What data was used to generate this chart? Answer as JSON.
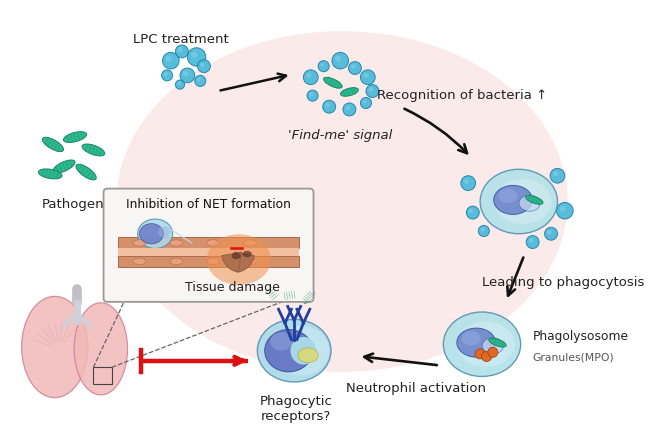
{
  "background_color": "#ffffff",
  "pink_glow_color": "#f5c8c8",
  "labels": {
    "lpc_treatment": "LPC treatment",
    "find_me_signal": "'Find-me' signal",
    "pathogen": "Pathogen",
    "recognition": "Recognition of bacteria ↑",
    "leading_phago": "Leading to phagocytosis",
    "phagolysosome": "Phagolysosome",
    "granules": "Granules(MPO)",
    "neutrophil": "Neutrophil activation",
    "phagocytic": "Phagocytic\nreceptors?",
    "inhibition_net": "Inhibition of NET formation",
    "tissue_damage": "Tissue damage"
  },
  "bacteria_color": "#2db890",
  "bacteria_edge": "#1a8865",
  "cell_outer_color": "#b0e0e8",
  "cell_inner_color": "#7088cc",
  "granule_color": "#e06820",
  "arrow_color": "#111111",
  "red_color": "#dd1111",
  "vesicle_color": "#48b8d8",
  "vesicle_edge": "#2080a8",
  "vesicle_light": "#88d0e8",
  "lung_color": "#f2b8b8",
  "lung_edge": "#d08090",
  "box_bg": "#f8f6f4",
  "box_edge": "#999999",
  "vessel_color": "#c8845a",
  "vessel_inner": "#e8a880",
  "orange_glow": "#f09050",
  "teal_receptor": "#208878",
  "navy_receptor": "#2040a0"
}
